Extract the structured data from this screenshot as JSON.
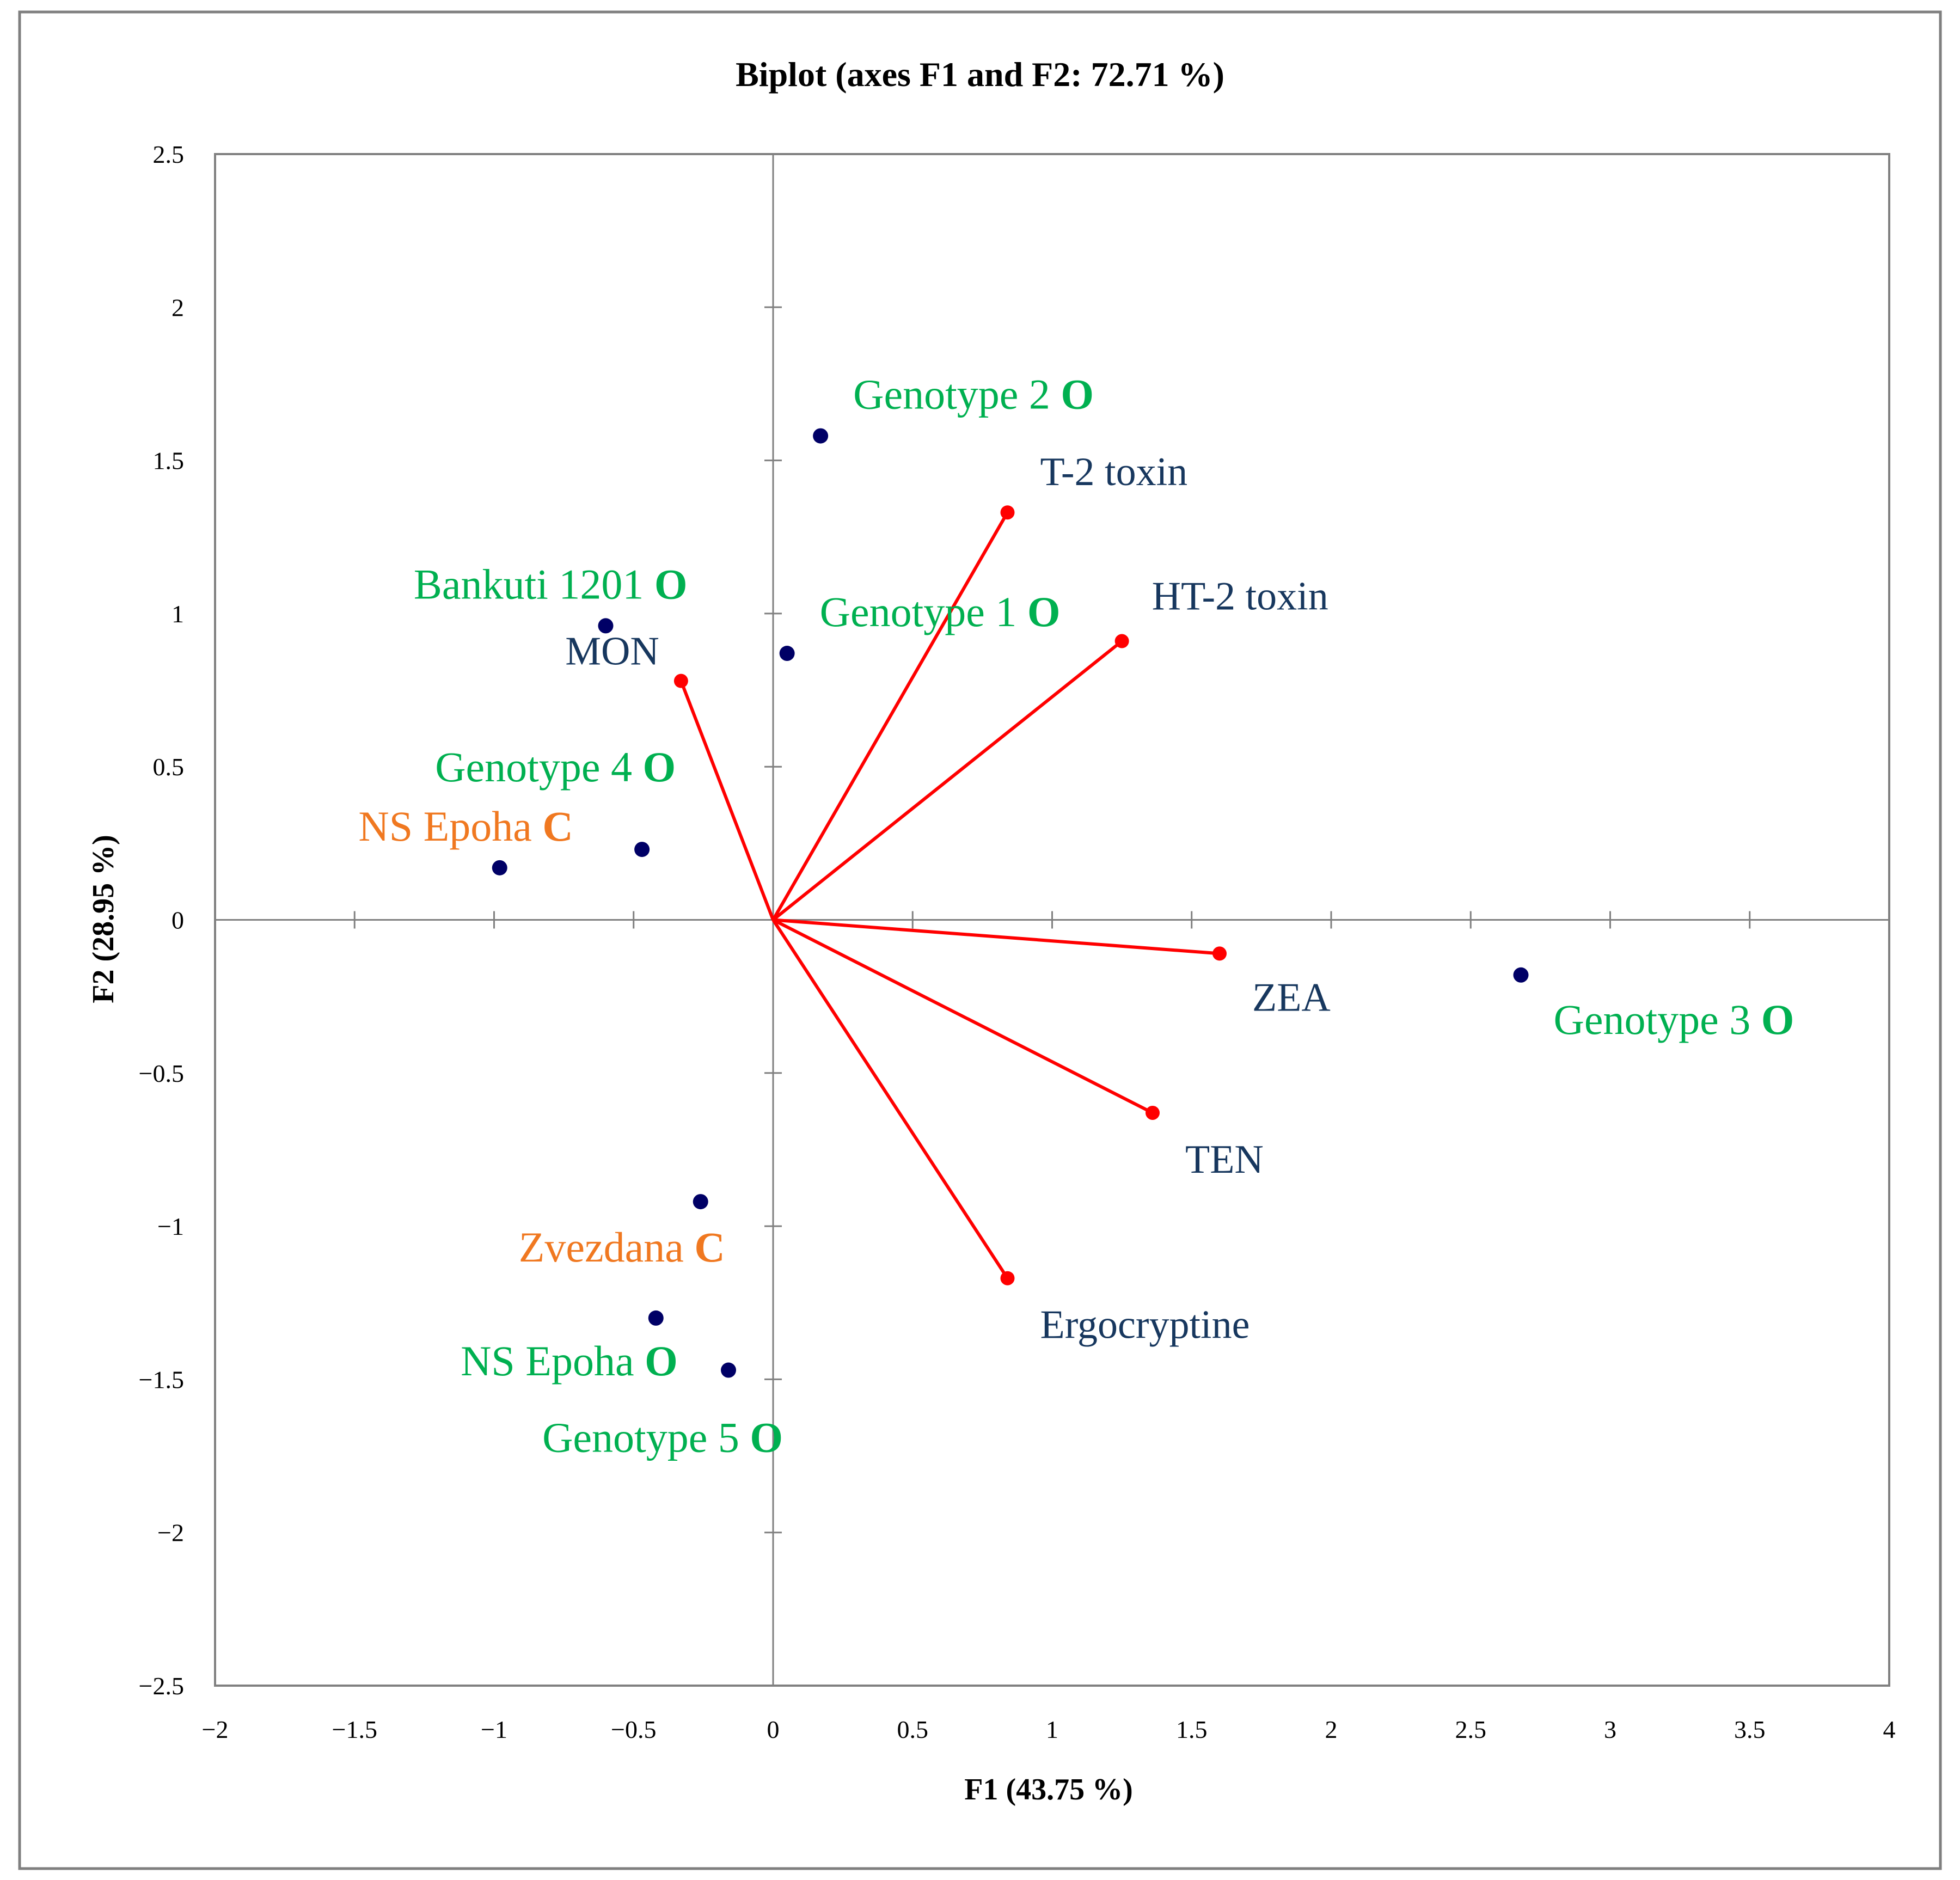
{
  "colors": {
    "background": "#ffffff",
    "frame": "#7f7f7f",
    "axis": "#808080",
    "vector": "#ff0000",
    "vector_tip": "#ff0000",
    "observation_point": "#000066",
    "variable_label": "#17375e",
    "organic_label": "#00b050",
    "conventional_label": "#f07820",
    "text": "#000000"
  },
  "chart_data": {
    "type": "scatter",
    "subtype": "biplot",
    "title": "Biplot (axes F1 and F2: 72.71 %)",
    "xlabel": "F1 (43.75 %)",
    "ylabel": "F2 (28.95 %)",
    "xlim": [
      -2,
      4
    ],
    "ylim": [
      -2.5,
      2.5
    ],
    "x_ticks": [
      -2,
      -1.5,
      -1,
      -0.5,
      0,
      0.5,
      1,
      1.5,
      2,
      2.5,
      3,
      3.5,
      4
    ],
    "x_tick_labels": [
      "−2",
      "−1.5",
      "−1",
      "−0.5",
      "0",
      "0.5",
      "1",
      "1.5",
      "2",
      "2.5",
      "3",
      "3.5",
      "4"
    ],
    "y_ticks": [
      2.5,
      2,
      1.5,
      1,
      0.5,
      0,
      -0.5,
      -1,
      -1.5,
      -2,
      -2.5
    ],
    "y_tick_labels": [
      "2.5",
      "2",
      "1.5",
      "1",
      "0.5",
      "0",
      "−0.5",
      "−1",
      "−1.5",
      "−2",
      "−2.5"
    ],
    "grid": false,
    "variables": [
      {
        "name": "T-2 toxin",
        "x": 0.84,
        "y": 1.33
      },
      {
        "name": "HT-2 toxin",
        "x": 1.25,
        "y": 0.91
      },
      {
        "name": "MON",
        "x": -0.33,
        "y": 0.78
      },
      {
        "name": "ZEA",
        "x": 1.6,
        "y": -0.11
      },
      {
        "name": "TEN",
        "x": 1.36,
        "y": -0.63
      },
      {
        "name": "Ergocryptine",
        "x": 0.84,
        "y": -1.17
      }
    ],
    "observations": [
      {
        "name": "Genotype 2",
        "suffix": "O",
        "group": "organic",
        "x": 0.17,
        "y": 1.58
      },
      {
        "name": "Genotype 1",
        "suffix": "O",
        "group": "organic",
        "x": 0.05,
        "y": 0.87
      },
      {
        "name": "Bankuti 1201",
        "suffix": "O",
        "group": "organic",
        "x": -0.6,
        "y": 0.96
      },
      {
        "name": "Genotype 4",
        "suffix": "O",
        "group": "organic",
        "x": -0.47,
        "y": 0.23
      },
      {
        "name": "NS Epoha",
        "suffix": "C",
        "group": "conventional",
        "x": -0.98,
        "y": 0.17
      },
      {
        "name": "Genotype 3",
        "suffix": "O",
        "group": "organic",
        "x": 2.68,
        "y": -0.18
      },
      {
        "name": "Zvezdana",
        "suffix": "C",
        "group": "conventional",
        "x": -0.26,
        "y": -0.92
      },
      {
        "name": "NS Epoha",
        "suffix": "O",
        "group": "organic",
        "x": -0.42,
        "y": -1.3
      },
      {
        "name": "Genotype 5",
        "suffix": "O",
        "group": "organic",
        "x": -0.16,
        "y": -1.47
      }
    ]
  }
}
